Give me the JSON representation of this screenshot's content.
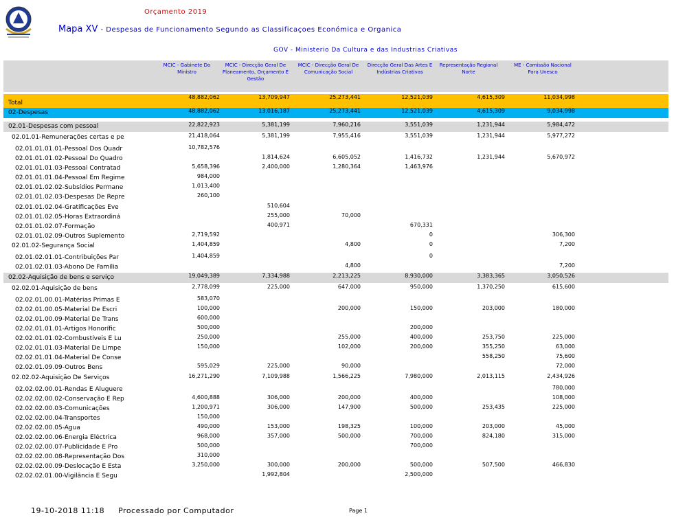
{
  "header": {
    "budget_title": "Orçamento 2019",
    "map_title": "Mapa XV",
    "map_subtitle": "- Despesas de Funcionamento Segundo as Classificaçoes Económica e Organica",
    "gov_line": "GOV - Ministerio Da Cultura e das Industrias Criativas"
  },
  "columns": [
    "MCIC - Gabinete Do Ministro",
    "MCIC - Direcção Geral De Planeamento, Orçamento E Gestão",
    "MCIC - Direcção Geral De Comunicação Social",
    "Direcção Geral Das Artes E Indústrias Criativas",
    "Representação Regional Norte",
    "ME - Comissão Nacional Para Unesco"
  ],
  "rows": [
    {
      "label": "Total",
      "v": [
        "48,882,062",
        "13,709,947",
        "25,273,441",
        "12,521,039",
        "4,615,309",
        "11,034,998"
      ]
    },
    {
      "label": "02-Despesas",
      "v": [
        "48,882,062",
        "13,016,187",
        "25,273,441",
        "12,521,039",
        "4,615,309",
        "9,034,998"
      ]
    },
    {
      "label": "02.01-Despesas com pessoal",
      "v": [
        "22,822,923",
        "5,381,199",
        "7,960,216",
        "3,551,039",
        "1,231,944",
        "5,984,472"
      ]
    },
    {
      "label": "02.01.01-Remunerações certas e pe",
      "v": [
        "21,418,064",
        "5,381,199",
        "7,955,416",
        "3,551,039",
        "1,231,944",
        "5,977,272"
      ]
    },
    {
      "label": "02.01.01.01.01-Pessoal Dos Quadr",
      "v": [
        "10,782,576",
        "",
        "",
        "",
        "",
        ""
      ]
    },
    {
      "label": "02.01.01.01.02-Pessoal Do Quadro",
      "v": [
        "",
        "1,814,624",
        "6,605,052",
        "1,416,732",
        "1,231,944",
        "5,670,972"
      ]
    },
    {
      "label": "02.01.01.01.03-Pessoal Contratad",
      "v": [
        "5,658,396",
        "2,400,000",
        "1,280,364",
        "1,463,976",
        "",
        ""
      ]
    },
    {
      "label": "02.01.01.01.04-Pessoal Em Regime",
      "v": [
        "984,000",
        "",
        "",
        "",
        "",
        ""
      ]
    },
    {
      "label": "02.01.01.02.02-Subsídios Permane",
      "v": [
        "1,013,400",
        "",
        "",
        "",
        "",
        ""
      ]
    },
    {
      "label": "02.01.01.02.03-Despesas De Repre",
      "v": [
        "260,100",
        "",
        "",
        "",
        "",
        ""
      ]
    },
    {
      "label": "02.01.01.02.04-Gratificações Eve",
      "v": [
        "",
        "510,604",
        "",
        "",
        "",
        ""
      ]
    },
    {
      "label": "02.01.01.02.05-Horas Extraordiná",
      "v": [
        "",
        "255,000",
        "70,000",
        "",
        "",
        ""
      ]
    },
    {
      "label": "02.01.01.02.07-Formação",
      "v": [
        "",
        "400,971",
        "",
        "670,331",
        "",
        ""
      ]
    },
    {
      "label": "02.01.01.02.09-Outros Suplemento",
      "v": [
        "2,719,592",
        "",
        "",
        "0",
        "",
        "306,300"
      ]
    },
    {
      "label": "02.01.02-Segurança Social",
      "v": [
        "1,404,859",
        "",
        "4,800",
        "0",
        "",
        "7,200"
      ]
    },
    {
      "label": "02.01.02.01.01-Contribuições Par",
      "v": [
        "1,404,859",
        "",
        "",
        "0",
        "",
        ""
      ]
    },
    {
      "label": "02.01.02.01.03-Abono De Família",
      "v": [
        "",
        "",
        "4,800",
        "",
        "",
        "7,200"
      ]
    },
    {
      "label": "02.02-Aquisição de bens e serviço",
      "v": [
        "19,049,389",
        "7,334,988",
        "2,213,225",
        "8,930,000",
        "3,383,365",
        "3,050,526"
      ]
    },
    {
      "label": "02.02.01-Aquisição de bens",
      "v": [
        "2,778,099",
        "225,000",
        "647,000",
        "950,000",
        "1,370,250",
        "615,600"
      ]
    },
    {
      "label": "02.02.01.00.01-Matérias Primas E",
      "v": [
        "583,070",
        "",
        "",
        "",
        "",
        ""
      ]
    },
    {
      "label": "02.02.01.00.05-Material De Escri",
      "v": [
        "100,000",
        "",
        "200,000",
        "150,000",
        "203,000",
        "180,000"
      ]
    },
    {
      "label": "02.02.01.00.09-Material De Trans",
      "v": [
        "600,000",
        "",
        "",
        "",
        "",
        ""
      ]
    },
    {
      "label": "02.02.01.01.01-Artigos Honorífic",
      "v": [
        "500,000",
        "",
        "",
        "200,000",
        "",
        ""
      ]
    },
    {
      "label": "02.02.01.01.02-Combustíveis E Lu",
      "v": [
        "250,000",
        "",
        "255,000",
        "400,000",
        "253,750",
        "225,000"
      ]
    },
    {
      "label": "02.02.01.01.03-Material De Limpe",
      "v": [
        "150,000",
        "",
        "102,000",
        "200,000",
        "355,250",
        "63,000"
      ]
    },
    {
      "label": "02.02.01.01.04-Material De Conse",
      "v": [
        "",
        "",
        "",
        "",
        "558,250",
        "75,600"
      ]
    },
    {
      "label": "02.02.01.09.09-Outros Bens",
      "v": [
        "595,029",
        "225,000",
        "90,000",
        "",
        "",
        "72,000"
      ]
    },
    {
      "label": "02.02.02-Aquisição De Serviços",
      "v": [
        "16,271,290",
        "7,109,988",
        "1,566,225",
        "7,980,000",
        "2,013,115",
        "2,434,926"
      ]
    },
    {
      "label": "02.02.02.00.01-Rendas E Aluguere",
      "v": [
        "",
        "",
        "",
        "",
        "",
        "780,000"
      ]
    },
    {
      "label": "02.02.02.00.02-Conservação E Rep",
      "v": [
        "4,600,888",
        "306,000",
        "200,000",
        "400,000",
        "",
        "108,000"
      ]
    },
    {
      "label": "02.02.02.00.03-Comunicações",
      "v": [
        "1,200,971",
        "306,000",
        "147,900",
        "500,000",
        "253,435",
        "225,000"
      ]
    },
    {
      "label": "02.02.02.00.04-Transportes",
      "v": [
        "150,000",
        "",
        "",
        "",
        "",
        ""
      ]
    },
    {
      "label": "02.02.02.00.05-Água",
      "v": [
        "490,000",
        "153,000",
        "198,325",
        "100,000",
        "203,000",
        "45,000"
      ]
    },
    {
      "label": "02.02.02.00.06-Energia Eléctrica",
      "v": [
        "968,000",
        "357,000",
        "500,000",
        "700,000",
        "824,180",
        "315,000"
      ]
    },
    {
      "label": "02.02.02.00.07-Publicidade E Pro",
      "v": [
        "500,000",
        "",
        "",
        "700,000",
        "",
        ""
      ]
    },
    {
      "label": "02.02.02.00.08-Representação Dos",
      "v": [
        "310,000",
        "",
        "",
        "",
        "",
        ""
      ]
    },
    {
      "label": "02.02.02.00.09-Deslocação E Esta",
      "v": [
        "3,250,000",
        "300,000",
        "200,000",
        "500,000",
        "507,500",
        "466,830"
      ]
    },
    {
      "label": "02.02.02.01.00-Vigilância E Segu",
      "v": [
        "",
        "1,992,804",
        "",
        "2,500,000",
        "",
        ""
      ]
    }
  ],
  "footer": {
    "date": "19-10-2018 11:18     Processado por Computador",
    "page": "Page 1"
  },
  "colors": {
    "total": "#ffc000",
    "despesas": "#00b0f0",
    "subtotal": "#d9d9d9",
    "header_blue": "#0000c8",
    "header_red": "#e00000"
  }
}
